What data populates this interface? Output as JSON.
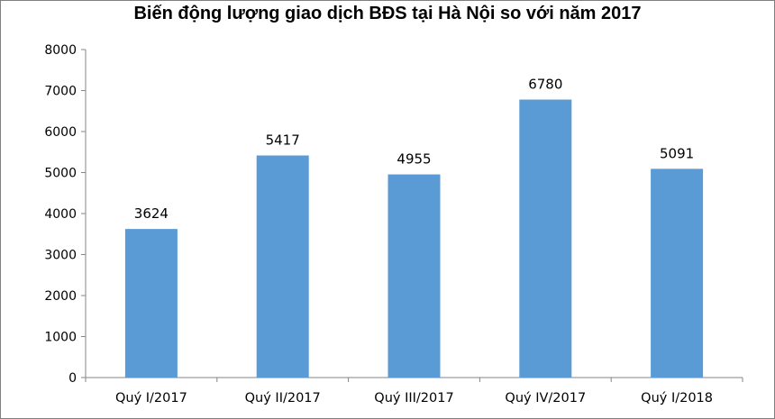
{
  "chart_data": {
    "type": "bar",
    "title": "Biến động lượng giao dịch BĐS tại Hà Nội so với năm 2017",
    "xlabel": "",
    "ylabel": "",
    "categories": [
      "Quý I/2017",
      "Quý II/2017",
      "Quý III/2017",
      "Quý IV/2017",
      "Quý I/2018"
    ],
    "values": [
      3624,
      5417,
      4955,
      6780,
      5091
    ],
    "ylim": [
      0,
      8000
    ],
    "yticks": [
      "0",
      "1000",
      "2000",
      "3000",
      "4000",
      "5000",
      "6000",
      "7000",
      "8000"
    ],
    "data_labels": [
      "3624",
      "5417",
      "4955",
      "6780",
      "5091"
    ],
    "bar_color": "#5b9bd5",
    "grid": false,
    "legend": "none"
  }
}
